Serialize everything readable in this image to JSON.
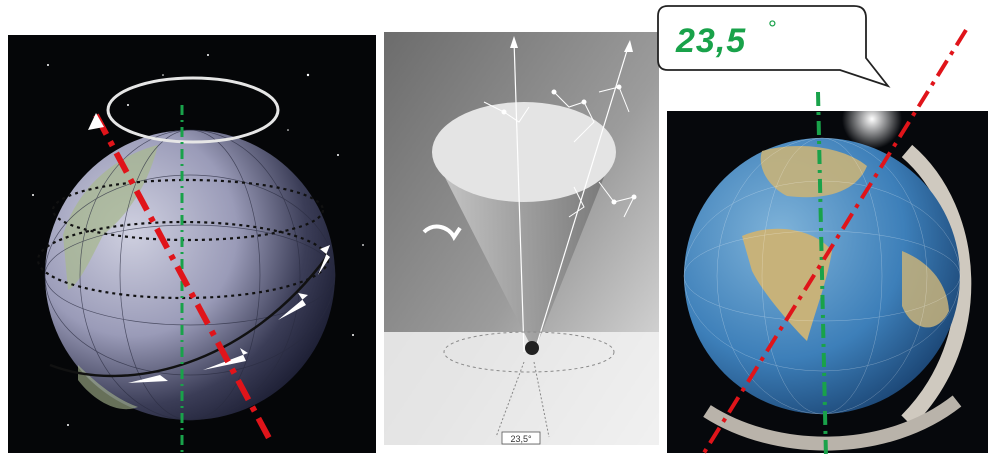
{
  "callout": {
    "value": "23,5",
    "degree_symbol": "°"
  },
  "sketch": {
    "angle_label": "23,5°"
  },
  "colors": {
    "tilt_axis": "#e0141a",
    "vertical_axis": "#19a24a",
    "space_background": "#050608",
    "ocean": "#3d7fb9"
  }
}
